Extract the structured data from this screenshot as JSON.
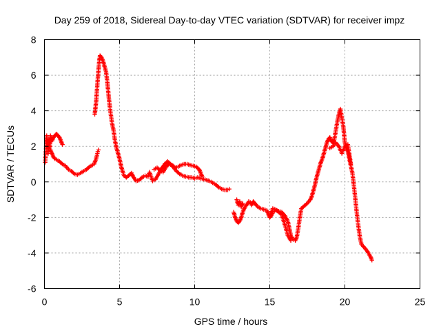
{
  "chart_data": {
    "type": "scatter",
    "title": "Day 259 of 2018, Sidereal Day-to-day VTEC variation (SDTVAR) for receiver impz",
    "xlabel": "GPS time / hours",
    "ylabel": "SDTVAR / TECUs",
    "xlim": [
      0,
      25
    ],
    "ylim": [
      -6,
      8
    ],
    "xticks": [
      0,
      5,
      10,
      15,
      20,
      25
    ],
    "yticks": [
      -6,
      -4,
      -2,
      0,
      2,
      4,
      6,
      8
    ],
    "grid": true,
    "marker": "+",
    "series": [
      {
        "name": "SDTVAR",
        "color": "#ff0000",
        "segments": [
          [
            [
              0.05,
              1.1
            ],
            [
              0.1,
              1.8
            ],
            [
              0.15,
              2.6
            ],
            [
              0.2,
              2.2
            ],
            [
              0.25,
              1.6
            ],
            [
              0.3,
              2.4
            ],
            [
              0.35,
              1.9
            ],
            [
              0.4,
              2.6
            ],
            [
              0.5,
              2.3
            ],
            [
              0.6,
              2.5
            ],
            [
              0.7,
              2.6
            ],
            [
              0.8,
              2.7
            ],
            [
              0.9,
              2.6
            ],
            [
              1.0,
              2.5
            ],
            [
              1.1,
              2.3
            ],
            [
              1.2,
              2.1
            ]
          ],
          [
            [
              0.4,
              1.8
            ],
            [
              0.5,
              1.6
            ],
            [
              0.6,
              1.4
            ],
            [
              0.7,
              1.3
            ],
            [
              0.8,
              1.25
            ],
            [
              1.0,
              1.15
            ],
            [
              1.2,
              1.0
            ],
            [
              1.4,
              0.9
            ],
            [
              1.6,
              0.7
            ],
            [
              1.8,
              0.6
            ],
            [
              2.0,
              0.45
            ],
            [
              2.2,
              0.4
            ],
            [
              2.4,
              0.5
            ],
            [
              2.6,
              0.6
            ],
            [
              2.8,
              0.7
            ],
            [
              3.0,
              0.85
            ],
            [
              3.2,
              0.95
            ],
            [
              3.3,
              1.0
            ],
            [
              3.4,
              1.2
            ],
            [
              3.5,
              1.5
            ],
            [
              3.55,
              1.7
            ],
            [
              3.6,
              1.8
            ]
          ],
          [
            [
              3.35,
              3.8
            ],
            [
              3.4,
              4.2
            ],
            [
              3.45,
              4.6
            ],
            [
              3.5,
              5.2
            ],
            [
              3.55,
              5.8
            ],
            [
              3.6,
              6.3
            ],
            [
              3.65,
              6.8
            ],
            [
              3.7,
              7.1
            ],
            [
              3.8,
              7.0
            ],
            [
              3.9,
              6.8
            ],
            [
              4.0,
              6.5
            ],
            [
              4.1,
              6.2
            ],
            [
              4.2,
              5.5
            ],
            [
              4.3,
              4.6
            ],
            [
              4.4,
              3.9
            ],
            [
              4.5,
              3.3
            ],
            [
              4.6,
              2.9
            ],
            [
              4.7,
              2.3
            ],
            [
              4.8,
              1.9
            ],
            [
              4.9,
              1.6
            ],
            [
              5.0,
              1.3
            ],
            [
              5.1,
              0.9
            ],
            [
              5.2,
              0.6
            ],
            [
              5.3,
              0.35
            ],
            [
              5.45,
              0.25
            ],
            [
              5.6,
              0.35
            ],
            [
              5.8,
              0.5
            ],
            [
              5.9,
              0.3
            ],
            [
              6.1,
              0.05
            ],
            [
              6.3,
              0.1
            ],
            [
              6.5,
              0.25
            ],
            [
              6.7,
              0.35
            ],
            [
              6.9,
              0.3
            ],
            [
              7.0,
              0.55
            ],
            [
              7.1,
              0.3
            ],
            [
              7.2,
              0.05
            ],
            [
              7.4,
              0.15
            ],
            [
              7.6,
              0.45
            ],
            [
              7.8,
              0.75
            ],
            [
              8.0,
              1.0
            ],
            [
              8.2,
              1.15
            ],
            [
              8.4,
              1.0
            ],
            [
              8.6,
              0.8
            ],
            [
              8.8,
              0.6
            ],
            [
              9.0,
              0.45
            ],
            [
              9.2,
              0.35
            ],
            [
              9.4,
              0.3
            ],
            [
              9.6,
              0.25
            ],
            [
              9.8,
              0.25
            ],
            [
              10.0,
              0.2
            ],
            [
              10.2,
              0.25
            ],
            [
              10.4,
              0.2
            ],
            [
              10.6,
              0.15
            ],
            [
              10.8,
              0.1
            ],
            [
              11.0,
              0.05
            ],
            [
              11.2,
              -0.05
            ],
            [
              11.4,
              -0.15
            ],
            [
              11.6,
              -0.3
            ],
            [
              11.8,
              -0.4
            ],
            [
              12.0,
              -0.45
            ],
            [
              12.2,
              -0.45
            ],
            [
              12.3,
              -0.4
            ]
          ],
          [
            [
              7.3,
              0.7
            ],
            [
              7.5,
              0.8
            ],
            [
              7.7,
              0.65
            ],
            [
              7.9,
              0.55
            ],
            [
              8.1,
              0.85
            ],
            [
              8.3,
              1.0
            ],
            [
              8.5,
              0.95
            ],
            [
              8.7,
              0.8
            ],
            [
              8.9,
              0.85
            ],
            [
              9.1,
              0.95
            ],
            [
              9.3,
              1.0
            ],
            [
              9.5,
              1.0
            ],
            [
              9.7,
              0.95
            ],
            [
              9.9,
              0.9
            ],
            [
              10.1,
              0.85
            ],
            [
              10.3,
              0.7
            ],
            [
              10.4,
              0.5
            ],
            [
              10.5,
              0.3
            ]
          ],
          [
            [
              12.6,
              -1.7
            ],
            [
              12.7,
              -2.0
            ],
            [
              12.8,
              -2.2
            ],
            [
              12.9,
              -2.3
            ],
            [
              13.0,
              -2.2
            ],
            [
              13.1,
              -2.0
            ],
            [
              13.2,
              -1.7
            ],
            [
              13.3,
              -1.5
            ],
            [
              13.4,
              -1.35
            ],
            [
              13.5,
              -1.25
            ],
            [
              13.6,
              -1.1
            ],
            [
              13.7,
              -1.15
            ],
            [
              13.8,
              -1.3
            ],
            [
              13.9,
              -1.1
            ],
            [
              14.0,
              -1.2
            ],
            [
              14.2,
              -1.4
            ],
            [
              14.4,
              -1.5
            ],
            [
              14.6,
              -1.55
            ],
            [
              14.8,
              -1.6
            ],
            [
              14.9,
              -1.8
            ],
            [
              15.0,
              -2.0
            ],
            [
              15.1,
              -1.9
            ],
            [
              15.2,
              -1.7
            ],
            [
              15.4,
              -1.6
            ],
            [
              15.6,
              -1.65
            ],
            [
              15.8,
              -1.7
            ],
            [
              16.0,
              -1.9
            ],
            [
              16.2,
              -2.2
            ],
            [
              16.3,
              -2.6
            ],
            [
              16.4,
              -3.0
            ],
            [
              16.5,
              -3.2
            ],
            [
              16.6,
              -3.25
            ],
            [
              16.7,
              -3.3
            ],
            [
              16.8,
              -3.1
            ],
            [
              16.9,
              -2.6
            ],
            [
              17.0,
              -2.0
            ],
            [
              17.1,
              -1.5
            ],
            [
              17.3,
              -1.35
            ],
            [
              17.5,
              -1.2
            ],
            [
              17.7,
              -1.0
            ],
            [
              17.8,
              -0.8
            ],
            [
              17.9,
              -0.5
            ],
            [
              18.0,
              -0.2
            ],
            [
              18.1,
              0.2
            ],
            [
              18.2,
              0.5
            ],
            [
              18.3,
              0.8
            ],
            [
              18.4,
              1.1
            ],
            [
              18.5,
              1.3
            ],
            [
              18.6,
              1.6
            ],
            [
              18.7,
              1.9
            ],
            [
              18.8,
              2.2
            ],
            [
              18.9,
              2.4
            ],
            [
              19.0,
              2.5
            ],
            [
              19.1,
              2.3
            ],
            [
              19.2,
              2.2
            ],
            [
              19.3,
              2.4
            ],
            [
              19.4,
              2.9
            ],
            [
              19.5,
              3.4
            ],
            [
              19.6,
              3.8
            ],
            [
              19.7,
              4.1
            ],
            [
              19.8,
              3.6
            ],
            [
              19.9,
              3.1
            ],
            [
              20.0,
              2.2
            ],
            [
              20.1,
              1.9
            ],
            [
              20.2,
              1.7
            ],
            [
              20.3,
              1.3
            ],
            [
              20.4,
              0.9
            ],
            [
              20.5,
              0.5
            ],
            [
              20.6,
              -0.2
            ],
            [
              20.7,
              -1.0
            ],
            [
              20.8,
              -1.8
            ],
            [
              20.9,
              -2.5
            ],
            [
              21.0,
              -3.1
            ],
            [
              21.1,
              -3.5
            ],
            [
              21.3,
              -3.7
            ],
            [
              21.5,
              -3.9
            ],
            [
              21.7,
              -4.2
            ],
            [
              21.8,
              -4.4
            ]
          ],
          [
            [
              12.8,
              -1.0
            ],
            [
              12.9,
              -1.3
            ],
            [
              13.0,
              -1.1
            ],
            [
              13.1,
              -1.4
            ],
            [
              13.2,
              -1.2
            ]
          ],
          [
            [
              15.0,
              -1.9
            ],
            [
              15.2,
              -1.5
            ],
            [
              15.4,
              -1.55
            ],
            [
              15.6,
              -1.7
            ],
            [
              15.8,
              -1.85
            ],
            [
              16.0,
              -2.4
            ],
            [
              16.2,
              -3.0
            ],
            [
              16.4,
              -3.3
            ]
          ],
          [
            [
              19.0,
              1.9
            ],
            [
              19.2,
              2.0
            ],
            [
              19.4,
              2.2
            ],
            [
              19.6,
              2.0
            ],
            [
              19.8,
              1.6
            ],
            [
              20.0,
              2.0
            ],
            [
              20.2,
              2.1
            ],
            [
              20.4,
              1.0
            ]
          ]
        ]
      }
    ]
  }
}
